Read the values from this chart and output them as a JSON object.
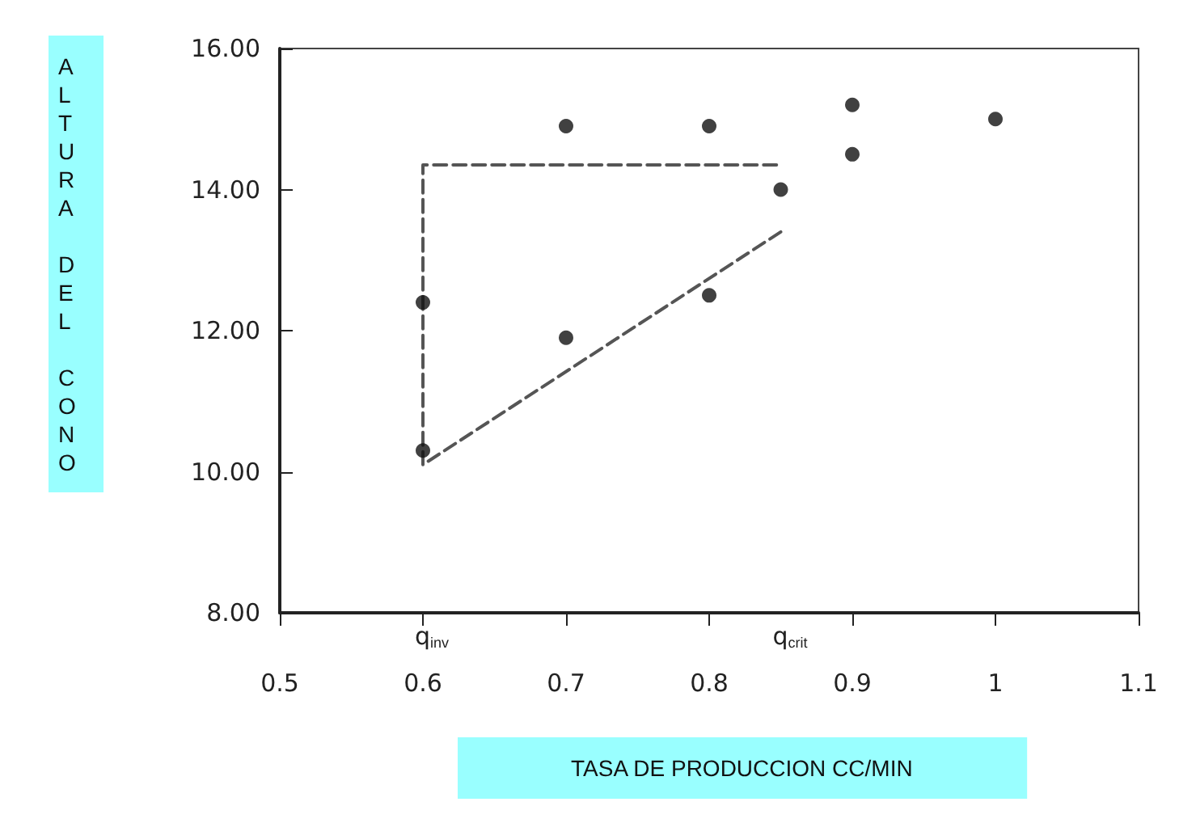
{
  "chart_data": {
    "type": "scatter",
    "xlabel": "TASA DE PRODUCCION CC/MIN",
    "ylabel": "ALTURA DEL CONO",
    "xlim": [
      0.5,
      1.1
    ],
    "xticks": [
      0.5,
      0.6,
      0.7,
      0.8,
      0.9,
      1,
      1.1
    ],
    "ylim": [
      8,
      16
    ],
    "yticks": [
      {
        "value": 8,
        "label": "8.00"
      },
      {
        "value": 10,
        "label": "10.00"
      },
      {
        "value": 12,
        "label": "12.00"
      },
      {
        "value": 14,
        "label": "14.00"
      },
      {
        "value": 16,
        "label": "16.00"
      }
    ],
    "grid": false,
    "marker": "circle",
    "series": [
      {
        "color": "#111111",
        "x": [
          0.6,
          0.6,
          0.7,
          0.7,
          0.8,
          0.8,
          0.85,
          0.9,
          0.9,
          1
        ],
        "values": [
          10.3,
          12.4,
          11.9,
          14.9,
          12.5,
          14.9,
          14.0,
          14.5,
          15.2,
          15.0
        ]
      },
      {
        "type": "line",
        "color": "#555555",
        "line_style": "dashed",
        "marker": "none",
        "x": [
          0.85,
          0.6,
          0.6,
          0.85
        ],
        "values": [
          13.4,
          10.1,
          14.35,
          14.35
        ]
      }
    ],
    "annotations": [
      "q$_{inv}$",
      "q$_{crit}$"
    ]
  }
}
